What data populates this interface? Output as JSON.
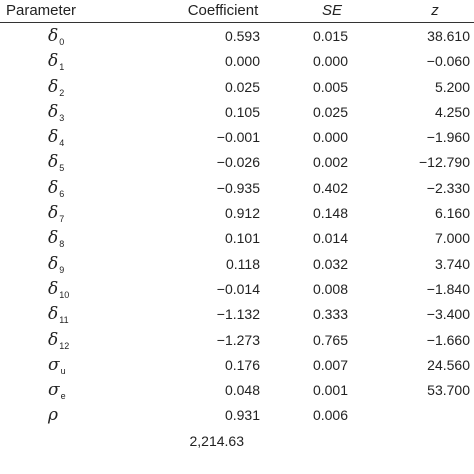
{
  "table": {
    "headers": {
      "parameter": "Parameter",
      "coefficient": "Coefficient",
      "se": "SE",
      "z": "z"
    },
    "rows": [
      {
        "symbol": "δ",
        "sub": "0",
        "coefficient": "0.593",
        "se": "0.015",
        "z": "38.610"
      },
      {
        "symbol": "δ",
        "sub": "1",
        "coefficient": "0.000",
        "se": "0.000",
        "z": "−0.060"
      },
      {
        "symbol": "δ",
        "sub": "2",
        "coefficient": "0.025",
        "se": "0.005",
        "z": "5.200"
      },
      {
        "symbol": "δ",
        "sub": "3",
        "coefficient": "0.105",
        "se": "0.025",
        "z": "4.250"
      },
      {
        "symbol": "δ",
        "sub": "4",
        "coefficient": "−0.001",
        "se": "0.000",
        "z": "−1.960"
      },
      {
        "symbol": "δ",
        "sub": "5",
        "coefficient": "−0.026",
        "se": "0.002",
        "z": "−12.790"
      },
      {
        "symbol": "δ",
        "sub": "6",
        "coefficient": "−0.935",
        "se": "0.402",
        "z": "−2.330"
      },
      {
        "symbol": "δ",
        "sub": "7",
        "coefficient": "0.912",
        "se": "0.148",
        "z": "6.160"
      },
      {
        "symbol": "δ",
        "sub": "8",
        "coefficient": "0.101",
        "se": "0.014",
        "z": "7.000"
      },
      {
        "symbol": "δ",
        "sub": "9",
        "coefficient": "0.118",
        "se": "0.032",
        "z": "3.740"
      },
      {
        "symbol": "δ",
        "sub": "10",
        "coefficient": "−0.014",
        "se": "0.008",
        "z": "−1.840"
      },
      {
        "symbol": "δ",
        "sub": "11",
        "coefficient": "−1.132",
        "se": "0.333",
        "z": "−3.400"
      },
      {
        "symbol": "δ",
        "sub": "12",
        "coefficient": "−1.273",
        "se": "0.765",
        "z": "−1.660"
      },
      {
        "symbol": "σ",
        "sub": "u",
        "coefficient": "0.176",
        "se": "0.007",
        "z": "24.560"
      },
      {
        "symbol": "σ",
        "sub": "e",
        "coefficient": "0.048",
        "se": "0.001",
        "z": "53.700"
      },
      {
        "symbol": "ρ",
        "sub": "",
        "coefficient": "0.931",
        "se": "0.006",
        "z": ""
      },
      {
        "symbol": "",
        "sub": "",
        "coefficient": "2,214.63",
        "se": "",
        "z": ""
      }
    ]
  }
}
